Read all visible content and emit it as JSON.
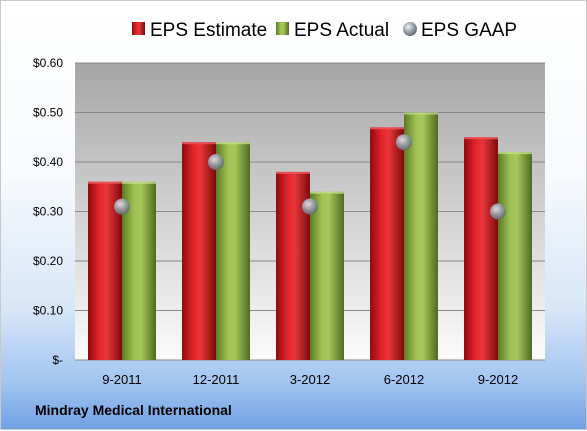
{
  "company": "Mindray Medical International",
  "chart_data": {
    "type": "bar",
    "categories": [
      "9-2011",
      "12-2011",
      "3-2012",
      "6-2012",
      "9-2012"
    ],
    "series": [
      {
        "name": "EPS Estimate",
        "kind": "bar",
        "color": "#c0141b",
        "values": [
          0.36,
          0.44,
          0.38,
          0.47,
          0.45
        ]
      },
      {
        "name": "EPS Actual",
        "kind": "bar",
        "color": "#7c9f3a",
        "values": [
          0.36,
          0.44,
          0.34,
          0.5,
          0.42
        ]
      },
      {
        "name": "EPS GAAP",
        "kind": "marker",
        "color": "#9aa3ad",
        "values": [
          0.31,
          0.4,
          0.31,
          0.44,
          0.3
        ]
      }
    ],
    "y_ticks": [
      {
        "value": 0.0,
        "label": "$-"
      },
      {
        "value": 0.1,
        "label": "$0.10"
      },
      {
        "value": 0.2,
        "label": "$0.20"
      },
      {
        "value": 0.3,
        "label": "$0.30"
      },
      {
        "value": 0.4,
        "label": "$0.40"
      },
      {
        "value": 0.5,
        "label": "$0.50"
      },
      {
        "value": 0.6,
        "label": "$0.60"
      }
    ],
    "ylim": [
      0,
      0.6
    ],
    "grid": true,
    "legend_position": "top",
    "title": "",
    "xlabel": "",
    "ylabel": ""
  }
}
